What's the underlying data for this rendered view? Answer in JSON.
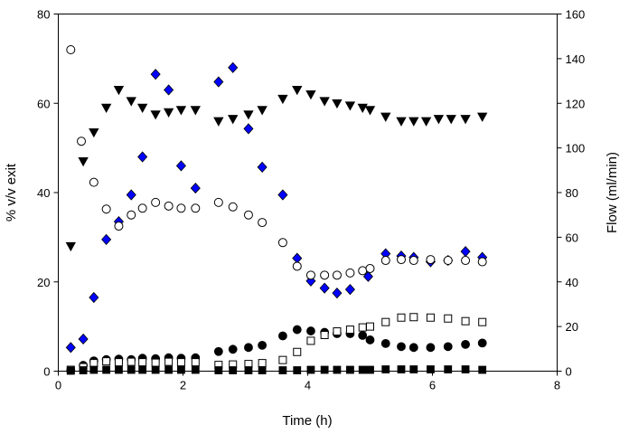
{
  "chart_data": {
    "type": "scatter",
    "title": "",
    "xlabel": "Time (h)",
    "ylabel_left": "% v/v exit",
    "ylabel_right": "Flow (ml/min)",
    "xlim": [
      0,
      8
    ],
    "ylim_left": [
      0,
      80
    ],
    "ylim_right": [
      0,
      160
    ],
    "x_ticks": [
      0,
      2,
      4,
      6,
      8
    ],
    "y_left_ticks": [
      0,
      20,
      40,
      60,
      80
    ],
    "y_right_ticks": [
      0,
      20,
      40,
      60,
      80,
      100,
      120,
      140,
      160
    ],
    "grid": false,
    "legend": "none",
    "series": [
      {
        "marker": "triangle-down-filled",
        "axis": "left",
        "color": "#000000",
        "x": [
          0.2,
          0.4,
          0.57,
          0.77,
          0.97,
          1.17,
          1.35,
          1.56,
          1.77,
          1.97,
          2.2,
          2.57,
          2.8,
          3.05,
          3.27,
          3.6,
          3.83,
          4.05,
          4.27,
          4.47,
          4.68,
          4.88,
          5.0,
          5.25,
          5.5,
          5.7,
          5.9,
          6.1,
          6.3,
          6.53,
          6.8
        ],
        "y": [
          28,
          47,
          53.5,
          59,
          63,
          60.5,
          59,
          57.5,
          58,
          58.5,
          58.5,
          56,
          56.5,
          57.5,
          58.5,
          61,
          63,
          62,
          60.5,
          60,
          59.5,
          59,
          58.5,
          57,
          56,
          56,
          56,
          56.5,
          56.5,
          56.5,
          57
        ]
      },
      {
        "marker": "diamond-blue",
        "axis": "left",
        "color": "#0000ff",
        "x": [
          0.2,
          0.4,
          0.57,
          0.77,
          0.97,
          1.17,
          1.35,
          1.56,
          1.77,
          1.97,
          2.2,
          2.57,
          2.8,
          3.05,
          3.27,
          3.6,
          3.83,
          4.05,
          4.27,
          4.47,
          4.68,
          4.97,
          5.25,
          5.5,
          5.7,
          5.97,
          6.25,
          6.53,
          6.8
        ],
        "y": [
          5.3,
          7.2,
          16.5,
          29.5,
          33.5,
          39.5,
          48,
          66.5,
          63,
          46,
          41,
          64.8,
          68,
          54.3,
          45.7,
          39.5,
          25.3,
          20.2,
          18.6,
          17.5,
          18.3,
          21.2,
          26.3,
          25.8,
          25.5,
          24.5,
          24.8,
          26.8,
          25.5
        ]
      },
      {
        "marker": "circle-open",
        "axis": "left",
        "color": "#000000",
        "x": [
          0.2,
          0.37,
          0.57,
          0.77,
          0.97,
          1.17,
          1.35,
          1.56,
          1.77,
          1.97,
          2.2,
          2.57,
          2.8,
          3.05,
          3.27,
          3.6,
          3.83,
          4.05,
          4.27,
          4.47,
          4.68,
          4.88,
          5.0,
          5.25,
          5.5,
          5.7,
          5.97,
          6.25,
          6.53,
          6.8
        ],
        "y": [
          72,
          51.5,
          42.3,
          36.3,
          32.5,
          35,
          36.5,
          37.8,
          37,
          36.5,
          36.5,
          37.8,
          36.8,
          35,
          33.3,
          28.8,
          23.5,
          21.5,
          21.5,
          21.5,
          22,
          22.5,
          23,
          24.8,
          25,
          24.8,
          25,
          24.8,
          24.8,
          24.5
        ]
      },
      {
        "marker": "circle-filled",
        "axis": "left",
        "color": "#000000",
        "x": [
          0.2,
          0.4,
          0.57,
          0.77,
          0.97,
          1.17,
          1.35,
          1.56,
          1.77,
          1.97,
          2.2,
          2.57,
          2.8,
          3.05,
          3.27,
          3.6,
          3.83,
          4.05,
          4.27,
          4.47,
          4.68,
          4.88,
          5.0,
          5.25,
          5.5,
          5.7,
          5.97,
          6.25,
          6.53,
          6.8
        ],
        "y": [
          0.2,
          1.3,
          2.3,
          2.6,
          2.7,
          2.6,
          2.9,
          2.8,
          3,
          2.9,
          3,
          4.4,
          4.9,
          5.3,
          5.8,
          7.9,
          9.3,
          9,
          8.7,
          8.4,
          8.4,
          8,
          7,
          6.2,
          5.5,
          5.3,
          5.3,
          5.5,
          6,
          6.3
        ]
      },
      {
        "marker": "square-open",
        "axis": "left",
        "color": "#000000",
        "x": [
          0.2,
          0.4,
          0.57,
          0.77,
          0.97,
          1.17,
          1.35,
          1.56,
          1.77,
          1.97,
          2.2,
          2.57,
          2.8,
          3.05,
          3.27,
          3.6,
          3.83,
          4.05,
          4.27,
          4.47,
          4.68,
          4.88,
          5.0,
          5.25,
          5.5,
          5.7,
          5.97,
          6.25,
          6.53,
          6.8
        ],
        "y": [
          0.3,
          0.9,
          1.8,
          2.2,
          2,
          2.1,
          2,
          1.9,
          2.1,
          2,
          2,
          1.4,
          1.5,
          1.6,
          1.8,
          2.5,
          4.3,
          6.8,
          8.1,
          8.9,
          9.3,
          9.8,
          10,
          11,
          12,
          12.1,
          12,
          11.8,
          11.2,
          11
        ]
      },
      {
        "marker": "square-filled",
        "axis": "left",
        "color": "#000000",
        "x": [
          0.2,
          0.4,
          0.57,
          0.77,
          0.97,
          1.17,
          1.35,
          1.56,
          1.77,
          1.97,
          2.2,
          2.57,
          2.8,
          3.05,
          3.27,
          3.6,
          3.83,
          4.05,
          4.27,
          4.47,
          4.68,
          4.88,
          5.0,
          5.25,
          5.5,
          5.7,
          5.97,
          6.25,
          6.53,
          6.8
        ],
        "y": [
          0.1,
          0.2,
          0.3,
          0.3,
          0.3,
          0.3,
          0.3,
          0.3,
          0.3,
          0.3,
          0.3,
          0.2,
          0.2,
          0.2,
          0.2,
          0.2,
          0.2,
          0.3,
          0.3,
          0.3,
          0.3,
          0.3,
          0.3,
          0.4,
          0.4,
          0.4,
          0.4,
          0.4,
          0.4,
          0.3
        ]
      }
    ]
  }
}
